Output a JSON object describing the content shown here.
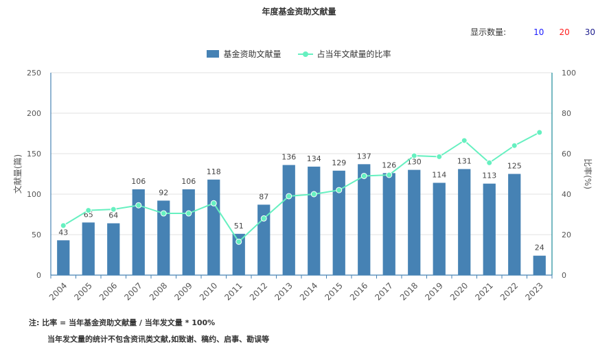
{
  "title": "年度基金资助文献量",
  "display_count": {
    "label": "显示数量:",
    "options": [
      {
        "label": "10",
        "color": "#1a1aff"
      },
      {
        "label": "20",
        "color": "#ff1a1a"
      },
      {
        "label": "30",
        "color": "#1a1a8c"
      }
    ]
  },
  "notes": {
    "line1": "注:  比率 = 当年基金资助文献量 / 当年发文量 * 100%",
    "line2": "当年发文量的统计不包含资讯类文献,如致谢、稿约、启事、勘误等"
  },
  "chart_data": {
    "type": "bar",
    "title": "年度基金资助文献量",
    "ylabel": "文献量(篇)",
    "y2label": "比率(%)",
    "ylim": [
      0,
      250
    ],
    "y2lim": [
      0,
      100
    ],
    "yticks": [
      0,
      50,
      100,
      150,
      200,
      250
    ],
    "y2ticks": [
      0,
      20,
      40,
      60,
      80,
      100
    ],
    "grid": true,
    "legend_position": "top",
    "categories": [
      "2004",
      "2005",
      "2006",
      "2007",
      "2008",
      "2009",
      "2010",
      "2011",
      "2012",
      "2013",
      "2014",
      "2015",
      "2016",
      "2017",
      "2018",
      "2019",
      "2020",
      "2021",
      "2022",
      "2023"
    ],
    "series": [
      {
        "name": "基金资助文献量",
        "kind": "bar",
        "axis": "left",
        "color": "#4682b4",
        "values": [
          43,
          65,
          64,
          106,
          92,
          106,
          118,
          51,
          87,
          136,
          134,
          129,
          137,
          126,
          130,
          114,
          131,
          113,
          125,
          24
        ]
      },
      {
        "name": "占当年文献量的比率",
        "kind": "line",
        "axis": "right",
        "color": "#66f0c0",
        "values": [
          24.5,
          32,
          32.5,
          34.5,
          30.5,
          30.5,
          35.5,
          16.5,
          28,
          39,
          40,
          42,
          49,
          49.5,
          59,
          58.5,
          66.5,
          55.5,
          64,
          70.5
        ]
      }
    ]
  }
}
